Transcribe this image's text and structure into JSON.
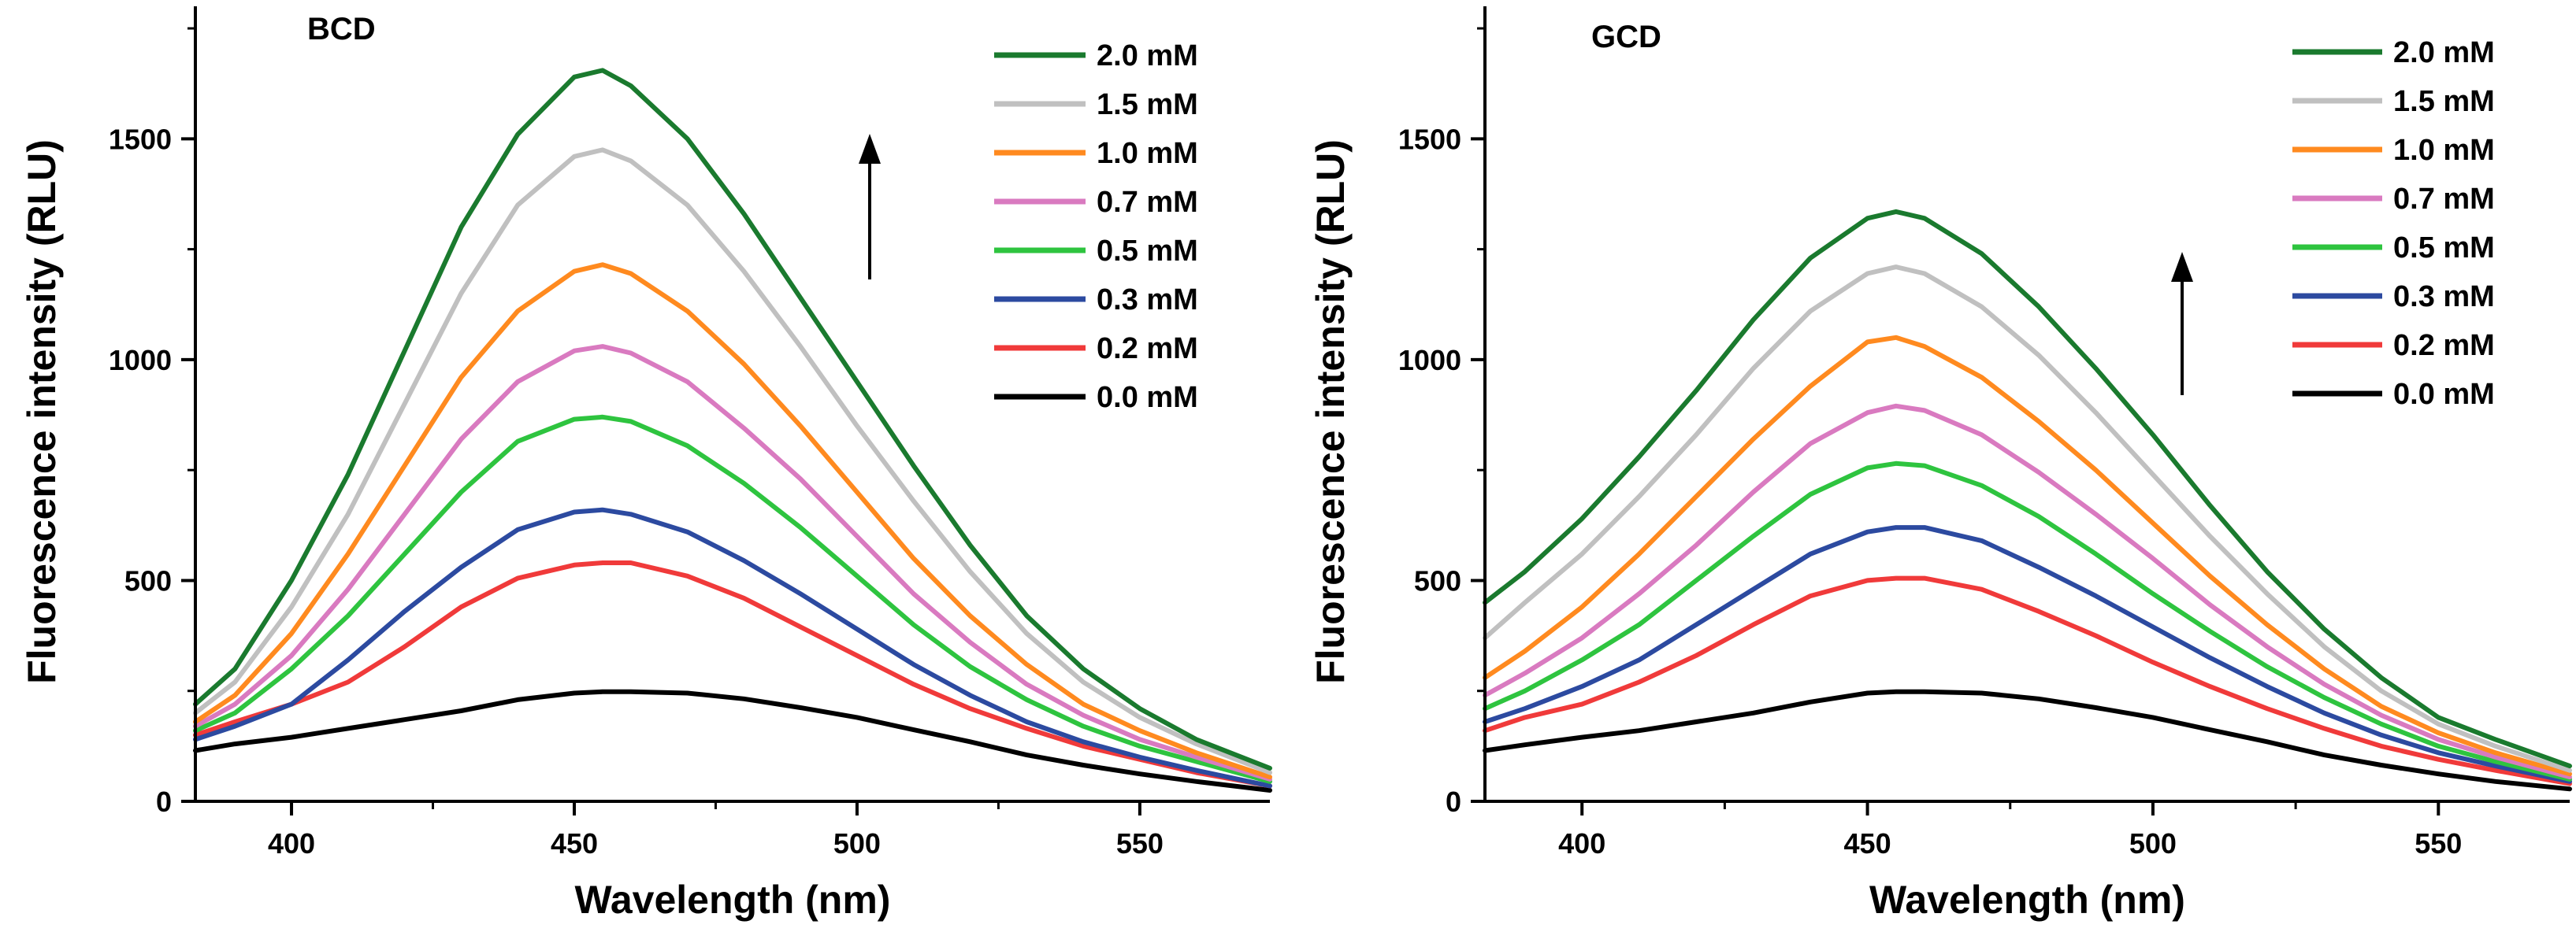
{
  "chart_data": [
    {
      "type": "line",
      "title": "BCD",
      "xlabel": "Wavelength (nm)",
      "ylabel": "Fluorescence intensity (RLU)",
      "xlim": [
        383,
        573
      ],
      "ylim": [
        0,
        1800
      ],
      "x_ticks": [
        400,
        450,
        500,
        550
      ],
      "y_ticks": [
        0,
        500,
        1000,
        1500
      ],
      "x_tick_labels": [
        "400",
        "450",
        "500",
        "550"
      ],
      "y_tick_labels": [
        "0",
        "500",
        "1000",
        "1500"
      ],
      "legend_position": "top-right",
      "annotation": "upward arrow: intensity increases with concentration",
      "x": [
        383,
        390,
        400,
        410,
        420,
        430,
        440,
        450,
        455,
        460,
        470,
        480,
        490,
        500,
        510,
        520,
        530,
        540,
        550,
        560,
        573
      ],
      "series": [
        {
          "name": "2.0 mM",
          "color": "#1a7a2e",
          "values": [
            220,
            300,
            500,
            740,
            1020,
            1300,
            1510,
            1640,
            1655,
            1620,
            1500,
            1330,
            1140,
            950,
            760,
            580,
            420,
            300,
            210,
            140,
            75
          ]
        },
        {
          "name": "1.5 mM",
          "color": "#c0c0c0",
          "values": [
            200,
            270,
            440,
            650,
            900,
            1150,
            1350,
            1460,
            1475,
            1450,
            1350,
            1200,
            1030,
            850,
            680,
            520,
            380,
            270,
            190,
            130,
            65
          ]
        },
        {
          "name": "1.0 mM",
          "color": "#ff8a1f",
          "values": [
            180,
            240,
            380,
            560,
            760,
            960,
            1110,
            1200,
            1215,
            1195,
            1110,
            990,
            850,
            700,
            550,
            420,
            310,
            220,
            160,
            110,
            55
          ]
        },
        {
          "name": "0.7 mM",
          "color": "#d97ac0",
          "values": [
            170,
            220,
            330,
            480,
            650,
            820,
            950,
            1020,
            1030,
            1015,
            950,
            845,
            730,
            600,
            470,
            360,
            265,
            195,
            140,
            100,
            50
          ]
        },
        {
          "name": "0.5 mM",
          "color": "#2ec43f",
          "values": [
            160,
            200,
            300,
            420,
            560,
            700,
            815,
            865,
            870,
            860,
            805,
            720,
            620,
            510,
            400,
            305,
            230,
            170,
            125,
            90,
            45
          ]
        },
        {
          "name": "0.3 mM",
          "color": "#2c4aa0",
          "values": [
            140,
            170,
            220,
            320,
            430,
            530,
            615,
            655,
            660,
            650,
            610,
            545,
            470,
            390,
            310,
            240,
            180,
            135,
            100,
            70,
            35
          ]
        },
        {
          "name": "0.2 mM",
          "color": "#f03a3a",
          "values": [
            150,
            180,
            220,
            270,
            350,
            440,
            505,
            535,
            540,
            540,
            510,
            460,
            395,
            330,
            265,
            210,
            165,
            125,
            95,
            65,
            35
          ]
        },
        {
          "name": "0.0 mM",
          "color": "#000000",
          "values": [
            115,
            130,
            145,
            165,
            185,
            205,
            230,
            245,
            248,
            248,
            245,
            232,
            212,
            190,
            162,
            135,
            105,
            82,
            62,
            45,
            25
          ]
        }
      ]
    },
    {
      "type": "line",
      "title": "GCD",
      "xlabel": "Wavelength (nm)",
      "ylabel": "Fluorescence intensity (RLU)",
      "xlim": [
        383,
        573
      ],
      "ylim": [
        0,
        1800
      ],
      "x_ticks": [
        400,
        450,
        500,
        550
      ],
      "y_ticks": [
        0,
        500,
        1000,
        1500
      ],
      "x_tick_labels": [
        "400",
        "450",
        "500",
        "550"
      ],
      "y_tick_labels": [
        "0",
        "500",
        "1000",
        "1500"
      ],
      "legend_position": "top-right",
      "annotation": "upward arrow: intensity increases with concentration",
      "x": [
        383,
        390,
        400,
        410,
        420,
        430,
        440,
        450,
        455,
        460,
        470,
        480,
        490,
        500,
        510,
        520,
        530,
        540,
        550,
        560,
        573
      ],
      "series": [
        {
          "name": "2.0 mM",
          "color": "#1a7a2e",
          "values": [
            450,
            520,
            640,
            780,
            930,
            1090,
            1230,
            1320,
            1335,
            1320,
            1240,
            1120,
            980,
            830,
            670,
            520,
            390,
            280,
            190,
            140,
            80
          ]
        },
        {
          "name": "1.5 mM",
          "color": "#c0c0c0",
          "values": [
            370,
            450,
            560,
            690,
            830,
            980,
            1110,
            1195,
            1210,
            1195,
            1120,
            1010,
            880,
            740,
            600,
            470,
            350,
            250,
            175,
            125,
            70
          ]
        },
        {
          "name": "1.0 mM",
          "color": "#ff8a1f",
          "values": [
            280,
            340,
            440,
            560,
            690,
            820,
            940,
            1040,
            1050,
            1030,
            960,
            860,
            750,
            630,
            510,
            400,
            300,
            215,
            155,
            110,
            62
          ]
        },
        {
          "name": "0.7 mM",
          "color": "#d97ac0",
          "values": [
            240,
            290,
            370,
            470,
            580,
            700,
            810,
            880,
            895,
            885,
            830,
            745,
            650,
            550,
            445,
            350,
            265,
            195,
            140,
            100,
            55
          ]
        },
        {
          "name": "0.5 mM",
          "color": "#2ec43f",
          "values": [
            210,
            250,
            320,
            400,
            500,
            600,
            695,
            755,
            765,
            760,
            715,
            645,
            560,
            470,
            385,
            305,
            235,
            175,
            125,
            90,
            50
          ]
        },
        {
          "name": "0.3 mM",
          "color": "#2c4aa0",
          "values": [
            180,
            210,
            260,
            320,
            400,
            480,
            560,
            610,
            620,
            620,
            590,
            530,
            465,
            395,
            325,
            260,
            200,
            150,
            110,
            80,
            45
          ]
        },
        {
          "name": "0.2 mM",
          "color": "#f03a3a",
          "values": [
            160,
            190,
            220,
            270,
            330,
            400,
            465,
            500,
            505,
            505,
            480,
            430,
            375,
            315,
            260,
            210,
            165,
            125,
            95,
            70,
            40
          ]
        },
        {
          "name": "0.0 mM",
          "color": "#000000",
          "values": [
            115,
            128,
            145,
            160,
            180,
            200,
            225,
            245,
            248,
            248,
            245,
            232,
            212,
            190,
            162,
            135,
            105,
            82,
            62,
            45,
            28
          ]
        }
      ]
    }
  ]
}
